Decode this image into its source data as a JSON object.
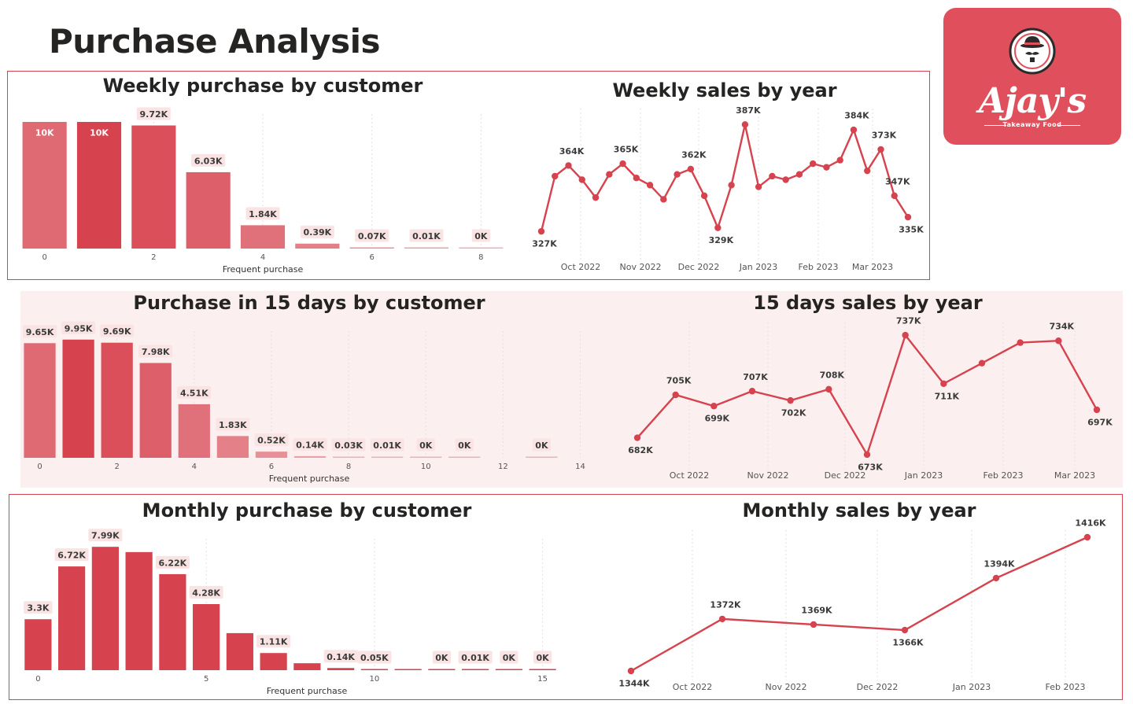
{
  "page": {
    "title": "Purchase Analysis"
  },
  "logo": {
    "name": "Ajay's",
    "tagline": "Takeaway Food"
  },
  "colors": {
    "accent": "#d6424e",
    "bar": "#d6424e",
    "label_bg": "#fae3e3",
    "panel_tint": "#fcefef"
  },
  "chart_data": [
    {
      "id": "weekly-purchase",
      "type": "bar",
      "title": "Weekly purchase by customer",
      "xlabel": "Frequent purchase",
      "x": [
        0,
        1,
        2,
        3,
        4,
        5,
        6,
        7,
        8
      ],
      "values": [
        10000,
        10000,
        9720,
        6030,
        1840,
        390,
        70,
        10,
        0
      ],
      "labels": [
        "10K",
        "10K",
        "9.72K",
        "6.03K",
        "1.84K",
        "0.39K",
        "0.07K",
        "0.01K",
        "0K"
      ],
      "xticks": [
        0,
        2,
        4,
        6,
        8
      ],
      "ylim": [
        0,
        10000
      ]
    },
    {
      "id": "weekly-sales",
      "type": "line",
      "title": "Weekly sales by year",
      "xticks": [
        "Oct 2022",
        "Nov 2022",
        "Dec 2022",
        "Jan 2023",
        "Feb 2023",
        "Mar 2023"
      ],
      "values": [
        327,
        358,
        364,
        356,
        346,
        359,
        365,
        357,
        353,
        345,
        359,
        362,
        347,
        329,
        353,
        387,
        352,
        358,
        356,
        359,
        365,
        363,
        367,
        384,
        361,
        373,
        347,
        335
      ],
      "labels": {
        "0": "327K",
        "2": "364K",
        "6": "365K",
        "11": "362K",
        "13": "329K",
        "15": "387K",
        "23": "384K",
        "25": "373K",
        "26": "347K",
        "27": "335K"
      },
      "ylim": [
        320,
        392
      ]
    },
    {
      "id": "fifteen-day-purchase",
      "type": "bar",
      "title": "Purchase in 15 days by customer",
      "xlabel": "Frequent purchase",
      "x": [
        0,
        1,
        2,
        3,
        4,
        5,
        6,
        7,
        8,
        9,
        10,
        11,
        12,
        13,
        14
      ],
      "values": [
        9650,
        9950,
        9690,
        7980,
        4510,
        1830,
        520,
        140,
        30,
        10,
        0,
        0,
        null,
        0,
        null
      ],
      "labels": [
        "9.65K",
        "9.95K",
        "9.69K",
        "7.98K",
        "4.51K",
        "1.83K",
        "0.52K",
        "0.14K",
        "0.03K",
        "0.01K",
        "0K",
        "0K",
        "",
        "0K",
        ""
      ],
      "xticks": [
        0,
        2,
        4,
        6,
        8,
        10,
        12,
        14
      ],
      "ylim": [
        0,
        10000
      ]
    },
    {
      "id": "fifteen-day-sales",
      "type": "line",
      "title": "15 days sales by year",
      "xticks": [
        "Oct 2022",
        "Nov 2022",
        "Dec 2022",
        "Jan 2023",
        "Feb 2023",
        "Mar 2023"
      ],
      "values": [
        682,
        705,
        699,
        707,
        702,
        708,
        673,
        737,
        711,
        722,
        733,
        734,
        697
      ],
      "labels": {
        "0": "682K",
        "1": "705K",
        "2": "699K",
        "3": "707K",
        "4": "702K",
        "5": "708K",
        "6": "673K",
        "7": "737K",
        "8": "711K",
        "11": "734K",
        "12": "697K"
      },
      "ylim": [
        670,
        740
      ]
    },
    {
      "id": "monthly-purchase",
      "type": "bar",
      "title": "Monthly purchase by customer",
      "xlabel": "Frequent purchase",
      "x": [
        0,
        1,
        2,
        3,
        4,
        5,
        6,
        7,
        8,
        9,
        10,
        11,
        12,
        13,
        14,
        15
      ],
      "values": [
        3300,
        6720,
        7990,
        7650,
        6220,
        4280,
        2400,
        1110,
        450,
        140,
        50,
        20,
        0,
        10,
        0,
        0
      ],
      "labels": [
        "3.3K",
        "6.72K",
        "7.99K",
        "",
        "6.22K",
        "4.28K",
        "",
        "1.11K",
        "",
        "0.14K",
        "0.05K",
        "",
        "0K",
        "0.01K",
        "0K",
        "0K"
      ],
      "xticks": [
        0,
        5,
        10,
        15
      ],
      "ylim": [
        0,
        8000
      ]
    },
    {
      "id": "monthly-sales",
      "type": "line",
      "title": "Monthly sales by year",
      "xticks": [
        "Oct 2022",
        "Nov 2022",
        "Dec 2022",
        "Jan 2023",
        "Feb 2023"
      ],
      "values": [
        1344,
        1372,
        1369,
        1366,
        1394,
        1416
      ],
      "labels": {
        "0": "1344K",
        "1": "1372K",
        "2": "1369K",
        "3": "1366K",
        "4": "1394K",
        "5": "1416K"
      },
      "ylim": [
        1344,
        1416
      ]
    }
  ]
}
